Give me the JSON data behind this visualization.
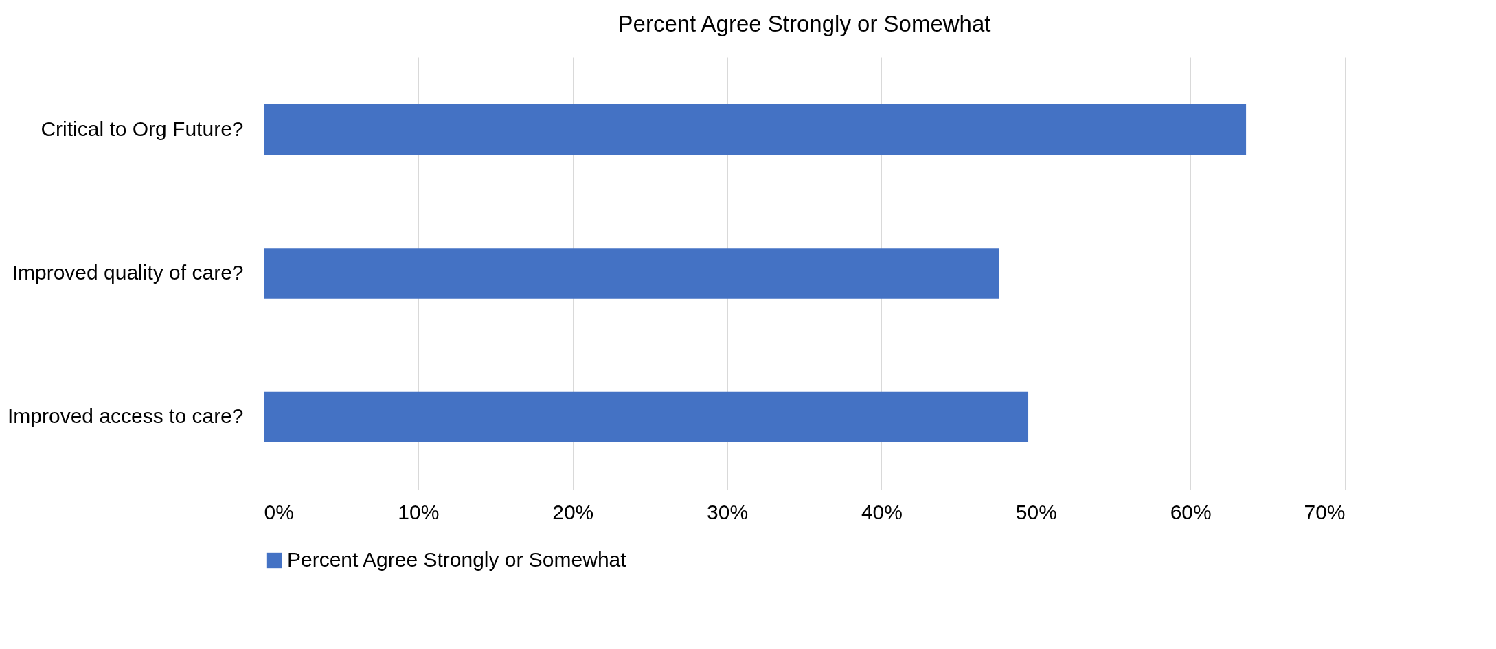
{
  "chart_data": {
    "type": "bar",
    "orientation": "horizontal",
    "title": "Percent Agree Strongly or Somewhat",
    "categories": [
      "Critical to Org Future?",
      "Improved quality of care?",
      "Improved access to care?"
    ],
    "series": [
      {
        "name": "Percent Agree Strongly or Somewhat",
        "color": "#4472c4",
        "values": [
          63.6,
          47.6,
          49.5
        ]
      }
    ],
    "xlim": [
      0,
      70
    ],
    "xticks": [
      {
        "value": 0,
        "label": "0%"
      },
      {
        "value": 10,
        "label": "10%"
      },
      {
        "value": 20,
        "label": "20%"
      },
      {
        "value": 30,
        "label": "30%"
      },
      {
        "value": 40,
        "label": "40%"
      },
      {
        "value": 50,
        "label": "50%"
      },
      {
        "value": 60,
        "label": "60%"
      },
      {
        "value": 70,
        "label": "70%"
      }
    ],
    "grid": "x",
    "legend": "bottom"
  }
}
